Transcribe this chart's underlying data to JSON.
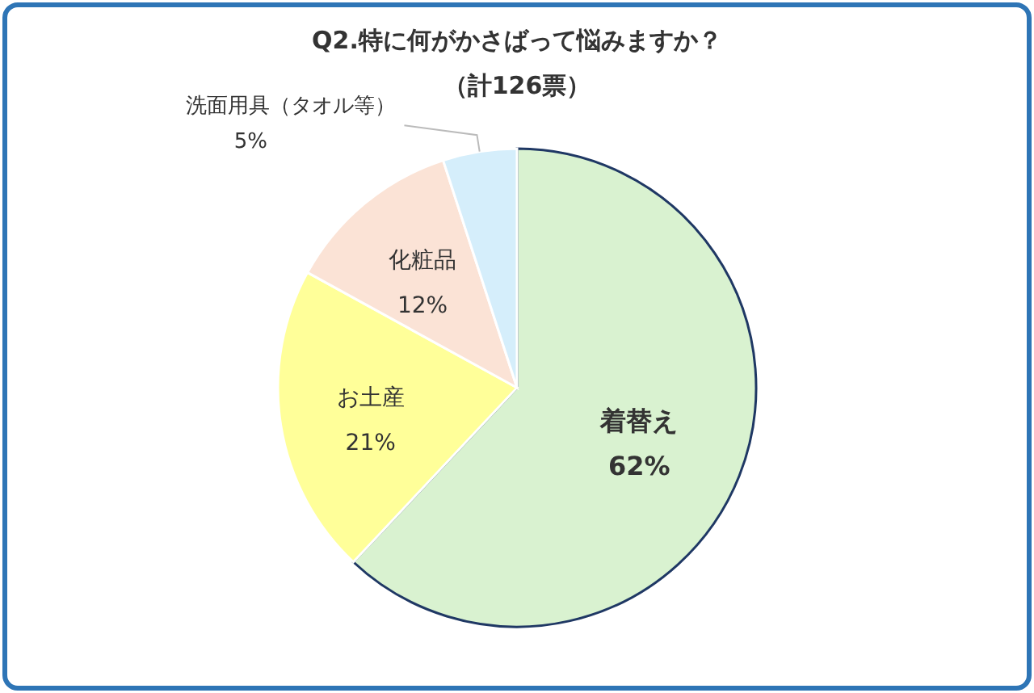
{
  "chart_data": {
    "type": "pie",
    "title": "Q2.特に何がかさばって悩みますか？",
    "subtitle": "（計126票）",
    "categories": [
      "着替え",
      "お土産",
      "化粧品",
      "洗面用具（タオル等）"
    ],
    "values": [
      62,
      21,
      12,
      5
    ],
    "value_labels": [
      "62%",
      "21%",
      "12%",
      "5%"
    ],
    "colors": [
      "#d9f2d0",
      "#ffff99",
      "#fbe3d6",
      "#d5eefb"
    ]
  }
}
